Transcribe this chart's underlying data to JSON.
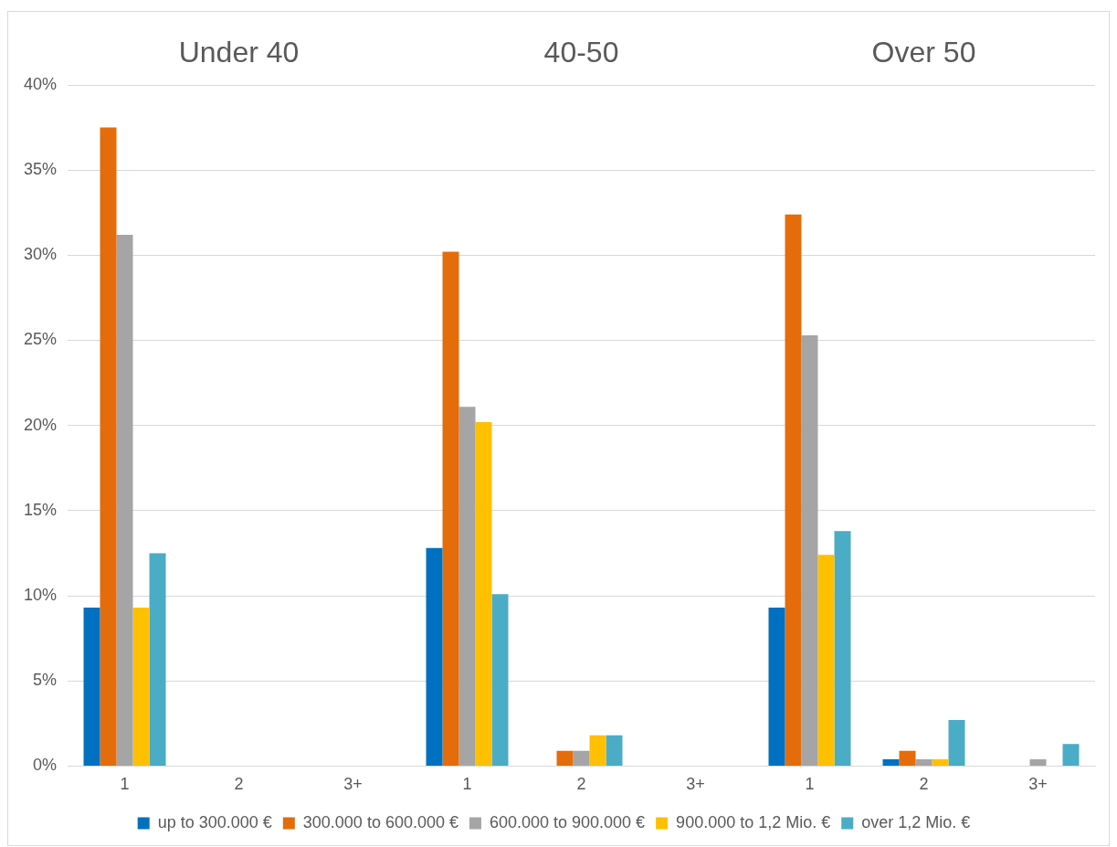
{
  "chart_data": {
    "type": "bar",
    "annotations": [
      "Under 40",
      "40-50",
      "Over 50"
    ],
    "categories": [
      "1",
      "2",
      "3+",
      "1",
      "2",
      "3+",
      "1",
      "2",
      "3+"
    ],
    "series": [
      {
        "name": "up to 300.000 €",
        "color": "#0070c0",
        "values": [
          9.3,
          0,
          0,
          12.8,
          0,
          0,
          9.3,
          0.4,
          0
        ]
      },
      {
        "name": "300.000 to 600.000 €",
        "color": "#e46c0a",
        "values": [
          37.5,
          0,
          0,
          30.2,
          0.9,
          0,
          32.4,
          0.9,
          0
        ]
      },
      {
        "name": "600.000 to 900.000 €",
        "color": "#a5a5a5",
        "values": [
          31.2,
          0,
          0,
          21.1,
          0.9,
          0,
          25.3,
          0.4,
          0.4
        ]
      },
      {
        "name": "900.000 to 1,2 Mio. €",
        "color": "#ffc000",
        "values": [
          9.3,
          0,
          0,
          20.2,
          1.8,
          0,
          12.4,
          0.4,
          0
        ]
      },
      {
        "name": "over 1,2 Mio. €",
        "color": "#4bacc6",
        "values": [
          12.5,
          0,
          0,
          10.1,
          1.8,
          0,
          13.8,
          2.7,
          1.3
        ]
      }
    ],
    "ylim": [
      0,
      40
    ],
    "yticks": [
      {
        "value": 0,
        "label": "0%"
      },
      {
        "value": 5,
        "label": "5%"
      },
      {
        "value": 10,
        "label": "10%"
      },
      {
        "value": 15,
        "label": "15%"
      },
      {
        "value": 20,
        "label": "20%"
      },
      {
        "value": 25,
        "label": "25%"
      },
      {
        "value": 30,
        "label": "30%"
      },
      {
        "value": 35,
        "label": "35%"
      },
      {
        "value": 40,
        "label": "40%"
      }
    ],
    "grid": "y",
    "legend": "bottom"
  }
}
